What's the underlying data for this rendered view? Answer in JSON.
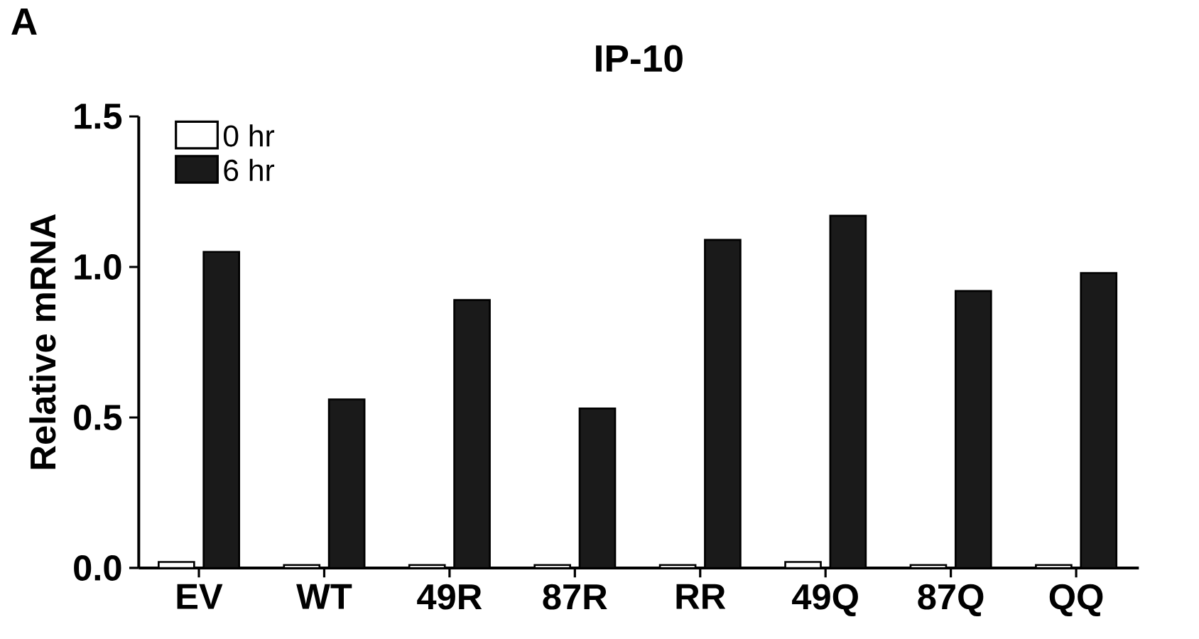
{
  "chart_data": {
    "type": "bar",
    "title": "IP-10",
    "ylabel": "Relative mRNA",
    "annotations": [
      "A"
    ],
    "categories": [
      "EV",
      "WT",
      "49R",
      "87R",
      "RR",
      "49Q",
      "87Q",
      "QQ"
    ],
    "series": [
      {
        "name": "0 hr",
        "color": "#ffffff",
        "values": [
          0.02,
          0.01,
          0.01,
          0.01,
          0.01,
          0.02,
          0.01,
          0.01
        ]
      },
      {
        "name": "6 hr",
        "color": "#1a1a1a",
        "values": [
          1.05,
          0.56,
          0.89,
          0.53,
          1.09,
          1.17,
          0.92,
          0.98
        ]
      }
    ],
    "ylim": [
      0,
      1.5
    ],
    "yticks": [
      {
        "value": 0,
        "label": "0.0"
      },
      {
        "value": 0.5,
        "label": "0.5"
      },
      {
        "value": 1,
        "label": "1.0"
      },
      {
        "value": 1.5,
        "label": "1.5"
      }
    ],
    "legend": "top left"
  }
}
